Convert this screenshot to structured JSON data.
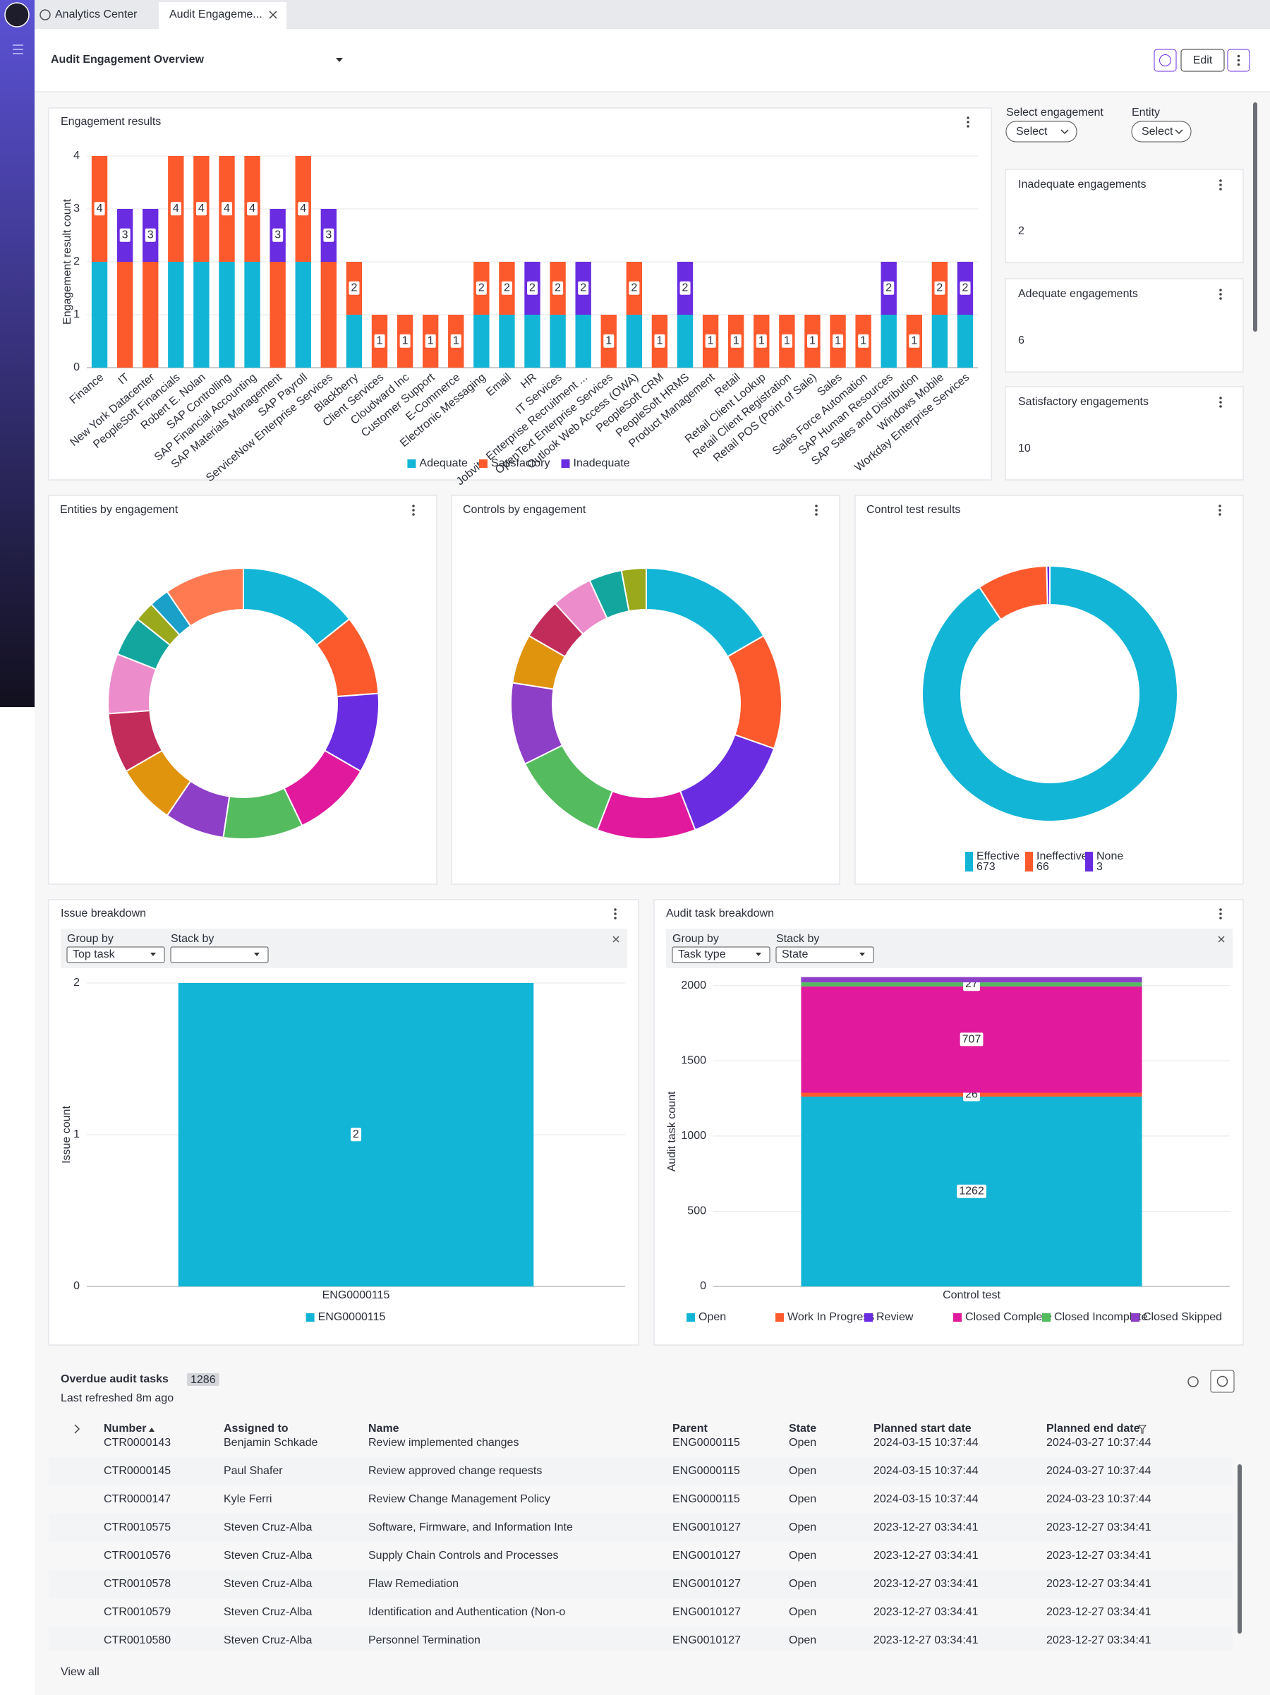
{
  "tabs": [
    "Analytics Center",
    "Audit Engageme..."
  ],
  "header": {
    "title": "Audit Engagement Overview",
    "edit": "Edit"
  },
  "filters": {
    "engagement_label": "Select engagement",
    "engagement_value": "Select",
    "entity_label": "Entity",
    "entity_value": "Select"
  },
  "kpis": [
    {
      "title": "Inadequate engagements",
      "value": 2
    },
    {
      "title": "Adequate engagements",
      "value": 6
    },
    {
      "title": "Satisfactory engagements",
      "value": 10
    }
  ],
  "chart_data": [
    {
      "type": "bar",
      "stacked": true,
      "data_labels": "total",
      "title": "Engagement results",
      "y_label": "Engagement result count",
      "categories": [
        "Finance",
        "IT",
        "New York Datacenter",
        "PeopleSoft Financials",
        "Robert E. Nolan",
        "SAP Controlling",
        "SAP Financial Accounting",
        "SAP Materials Management",
        "SAP Payroll",
        "ServiceNow Enterprise Services",
        "Blackberry",
        "Client Services",
        "Cloudward Inc",
        "Customer Support",
        "E-Commerce",
        "Electronic Messaging",
        "Email",
        "HR",
        "IT Services",
        "Jobvite Enterprise Recruitment ...",
        "OpenText Enterprise Services",
        "Outlook Web Access (OWA)",
        "PeopleSoft CRM",
        "PeopleSoft HRMS",
        "Product Management",
        "Retail",
        "Retail Client Lookup",
        "Retail Client Registration",
        "Retail POS (Point of Sale)",
        "Sales",
        "Sales Force Automation",
        "SAP Human Resources",
        "SAP Sales and Distribution",
        "Windows Mobile",
        "Workday Enterprise Services"
      ],
      "series": [
        {
          "name": "Adequate",
          "color": "#12b5d6",
          "values": [
            2,
            0,
            0,
            2,
            2,
            2,
            2,
            0,
            2,
            0,
            1,
            0,
            0,
            0,
            0,
            1,
            1,
            1,
            1,
            1,
            0,
            1,
            0,
            1,
            0,
            0,
            0,
            0,
            0,
            0,
            0,
            1,
            0,
            1,
            1
          ]
        },
        {
          "name": "Satisfactory",
          "color": "#fc5a2d",
          "values": [
            2,
            2,
            2,
            2,
            2,
            2,
            2,
            2,
            2,
            2,
            1,
            1,
            1,
            1,
            1,
            1,
            1,
            0,
            1,
            0,
            1,
            1,
            1,
            0,
            1,
            1,
            1,
            1,
            1,
            1,
            1,
            0,
            1,
            1,
            0
          ]
        },
        {
          "name": "Inadequate",
          "color": "#6a2ce0",
          "values": [
            0,
            1,
            1,
            0,
            0,
            0,
            0,
            1,
            0,
            1,
            0,
            0,
            0,
            0,
            0,
            0,
            0,
            1,
            0,
            1,
            0,
            0,
            0,
            1,
            0,
            0,
            0,
            0,
            0,
            0,
            0,
            1,
            0,
            0,
            1
          ]
        }
      ],
      "totals": [
        4,
        3,
        3,
        4,
        4,
        4,
        4,
        3,
        4,
        3,
        2,
        1,
        1,
        1,
        1,
        2,
        2,
        2,
        2,
        2,
        1,
        2,
        1,
        2,
        1,
        1,
        1,
        1,
        1,
        1,
        1,
        2,
        1,
        2,
        2
      ],
      "ylim": [
        0,
        4
      ],
      "yticks": [
        0,
        1,
        2,
        3,
        4
      ],
      "grid": true,
      "legend": "bottom"
    },
    {
      "type": "pie",
      "donut": true,
      "title": "Entities by engagement",
      "values": [
        6,
        4,
        4,
        4,
        4,
        3,
        3,
        3,
        3,
        2,
        1,
        1,
        4
      ],
      "colors": [
        "#12b5d6",
        "#fc5a2d",
        "#6a2ce0",
        "#e0199d",
        "#54bb5f",
        "#8e3fc7",
        "#e0930d",
        "#c22c5a",
        "#ec8ccb",
        "#13a69e",
        "#9aa81c",
        "#1ba0c9",
        "#ff7a50"
      ]
    },
    {
      "type": "pie",
      "donut": true,
      "title": "Controls by engagement",
      "values": [
        17,
        14,
        14,
        12,
        12,
        10,
        6,
        5,
        5,
        4,
        3
      ],
      "colors": [
        "#12b5d6",
        "#fc5a2d",
        "#6a2ce0",
        "#e0199d",
        "#54bb5f",
        "#8e3fc7",
        "#e0930d",
        "#c22c5a",
        "#ec8ccb",
        "#13a69e",
        "#9aa81c"
      ]
    },
    {
      "type": "pie",
      "donut": true,
      "title": "Control test results",
      "categories": [
        "Effective",
        "Ineffective",
        "None"
      ],
      "values": [
        673,
        66,
        3
      ],
      "colors": [
        "#12b5d6",
        "#fc5a2d",
        "#6a2ce0"
      ],
      "legend": "bottom"
    },
    {
      "type": "bar",
      "stacked": true,
      "data_labels": "segment",
      "title": "Issue breakdown",
      "group_by_label": "Group by",
      "group_by": "Top task",
      "stack_by_label": "Stack by",
      "y_label": "Issue count",
      "categories": [
        "ENG0000115"
      ],
      "series": [
        {
          "name": "ENG0000115",
          "color": "#12b5d6",
          "values": [
            2
          ]
        }
      ],
      "ylim": [
        0,
        2
      ],
      "yticks": [
        0,
        1,
        2
      ],
      "grid": true,
      "legend": "bottom"
    },
    {
      "type": "bar",
      "stacked": true,
      "data_labels": "segment",
      "title": "Audit task breakdown",
      "group_by_label": "Group by",
      "group_by": "Task type",
      "stack_by_label": "Stack by",
      "stack_by": "State",
      "y_label": "Audit task count",
      "categories": [
        "Control test"
      ],
      "series": [
        {
          "name": "Open",
          "color": "#12b5d6",
          "values": [
            1262
          ]
        },
        {
          "name": "Work In Progress",
          "color": "#fc5a2d",
          "values": [
            26
          ]
        },
        {
          "name": "Review",
          "color": "#6a2ce0",
          "values": [
            0
          ],
          "labels": false
        },
        {
          "name": "Closed Complete",
          "color": "#e0199d",
          "values": [
            707
          ]
        },
        {
          "name": "Closed Incomplete",
          "color": "#54bb5f",
          "values": [
            27
          ]
        },
        {
          "name": "Closed Skipped",
          "color": "#8e3fc7",
          "values": [
            35
          ],
          "labels": false
        }
      ],
      "ylim": [
        0,
        2060
      ],
      "yticks": [
        0,
        500,
        1000,
        1500,
        2000
      ],
      "grid": true,
      "legend": "bottom"
    }
  ],
  "table": {
    "title": "Overdue audit tasks",
    "count": 1286,
    "subtitle": "Last refreshed 8m ago",
    "columns": [
      "Number",
      "Assigned to",
      "Name",
      "Parent",
      "State",
      "Planned start date",
      "Planned end date"
    ],
    "rows": [
      [
        "CTR0000143",
        "Benjamin Schkade",
        "Review implemented changes",
        "ENG0000115",
        "Open",
        "2024-03-15 10:37:44",
        "2024-03-27 10:37:44"
      ],
      [
        "CTR0000145",
        "Paul Shafer",
        "Review approved change requests",
        "ENG0000115",
        "Open",
        "2024-03-15 10:37:44",
        "2024-03-27 10:37:44"
      ],
      [
        "CTR0000147",
        "Kyle Ferri",
        "Review Change Management Policy",
        "ENG0000115",
        "Open",
        "2024-03-15 10:37:44",
        "2024-03-23 10:37:44"
      ],
      [
        "CTR0010575",
        "Steven Cruz-Alba",
        "Software, Firmware, and Information Inte",
        "ENG0010127",
        "Open",
        "2023-12-27 03:34:41",
        "2023-12-27 03:34:41"
      ],
      [
        "CTR0010576",
        "Steven Cruz-Alba",
        "Supply Chain Controls and Processes",
        "ENG0010127",
        "Open",
        "2023-12-27 03:34:41",
        "2023-12-27 03:34:41"
      ],
      [
        "CTR0010578",
        "Steven Cruz-Alba",
        "Flaw Remediation",
        "ENG0010127",
        "Open",
        "2023-12-27 03:34:41",
        "2023-12-27 03:34:41"
      ],
      [
        "CTR0010579",
        "Steven Cruz-Alba",
        "Identification and Authentication (Non-o",
        "ENG0010127",
        "Open",
        "2023-12-27 03:34:41",
        "2023-12-27 03:34:41"
      ],
      [
        "CTR0010580",
        "Steven Cruz-Alba",
        "Personnel Termination",
        "ENG0010127",
        "Open",
        "2023-12-27 03:34:41",
        "2023-12-27 03:34:41"
      ]
    ],
    "view_all": "View all"
  }
}
